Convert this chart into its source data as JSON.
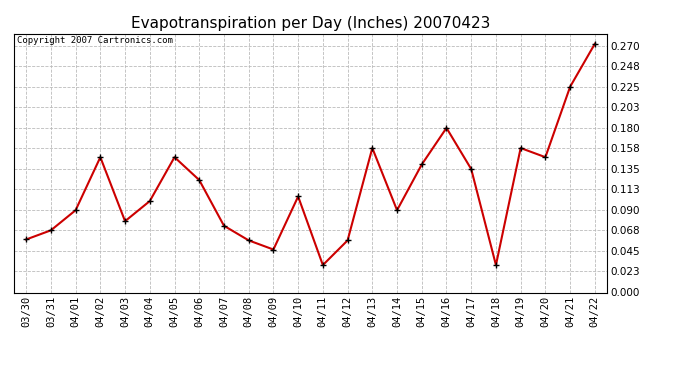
{
  "title": "Evapotranspiration per Day (Inches) 20070423",
  "copyright": "Copyright 2007 Cartronics.com",
  "labels": [
    "03/30",
    "03/31",
    "04/01",
    "04/02",
    "04/03",
    "04/04",
    "04/05",
    "04/06",
    "04/07",
    "04/08",
    "04/09",
    "04/10",
    "04/11",
    "04/12",
    "04/13",
    "04/14",
    "04/15",
    "04/16",
    "04/17",
    "04/18",
    "04/19",
    "04/20",
    "04/21",
    "04/22"
  ],
  "values": [
    0.058,
    0.068,
    0.09,
    0.148,
    0.078,
    0.1,
    0.148,
    0.123,
    0.073,
    0.057,
    0.047,
    0.105,
    0.03,
    0.057,
    0.158,
    0.09,
    0.14,
    0.18,
    0.135,
    0.03,
    0.158,
    0.148,
    0.225,
    0.272
  ],
  "line_color": "#cc0000",
  "marker": "+",
  "marker_color": "#000000",
  "marker_size": 5,
  "background_color": "#ffffff",
  "grid_color": "#bbbbbb",
  "ylim": [
    0.0,
    0.283
  ],
  "yticks": [
    0.0,
    0.023,
    0.045,
    0.068,
    0.09,
    0.113,
    0.135,
    0.158,
    0.18,
    0.203,
    0.225,
    0.248,
    0.27
  ],
  "title_fontsize": 11,
  "copyright_fontsize": 6.5,
  "tick_fontsize": 7.5,
  "line_width": 1.5
}
